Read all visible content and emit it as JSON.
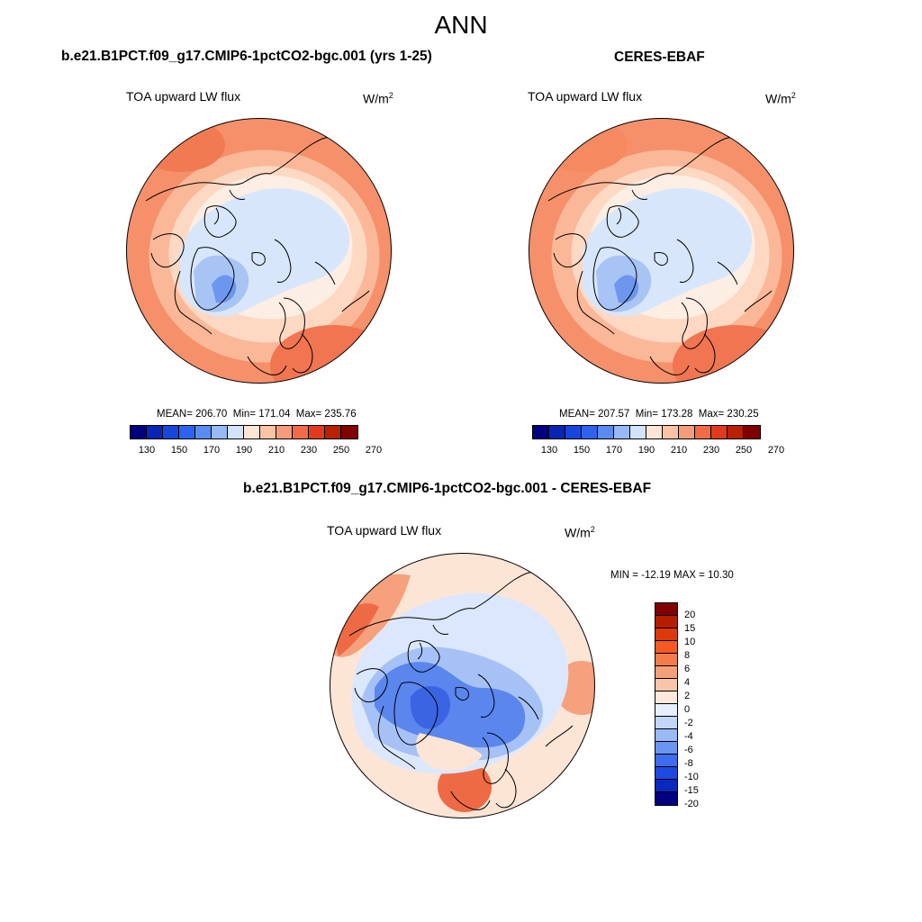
{
  "figure": {
    "title": "ANN"
  },
  "panels": {
    "model": {
      "title": "b.e21.B1PCT.f09_g17.CMIP6-1pctCO2-bgc.001 (yrs 1-25)",
      "variable": "TOA upward LW flux",
      "units_base": "W/m",
      "units_exp": "2",
      "mean_label": "MEAN=",
      "mean": "206.70",
      "min_label": "Min=",
      "min": "171.04",
      "max_label": "Max=",
      "max": "235.76"
    },
    "obs": {
      "title": "CERES-EBAF",
      "variable": "TOA upward LW flux",
      "units_base": "W/m",
      "units_exp": "2",
      "mean_label": "MEAN=",
      "mean": "207.57",
      "min_label": "Min=",
      "min": "173.28",
      "max_label": "Max=",
      "max": "230.25"
    },
    "diff": {
      "title": "b.e21.B1PCT.f09_g17.CMIP6-1pctCO2-bgc.001 - CERES-EBAF",
      "variable": "TOA upward LW flux",
      "units_base": "W/m",
      "units_exp": "2",
      "minmax_text": "MIN = -12.19 MAX =  10.30"
    }
  },
  "colorbars": {
    "abs": {
      "colors": [
        "#000080",
        "#0a24b4",
        "#1a45dc",
        "#2d63ec",
        "#5a8cf0",
        "#98b9f5",
        "#d2e3fb",
        "#fde5d6",
        "#fbc3a6",
        "#f79c7a",
        "#f26a48",
        "#e23a1e",
        "#b82200",
        "#800000"
      ],
      "ticks": [
        "130",
        "150",
        "170",
        "190",
        "210",
        "230",
        "250",
        "270"
      ]
    },
    "diff": {
      "colors": [
        "#800000",
        "#b41e00",
        "#dc3a0c",
        "#f55a22",
        "#f27c4a",
        "#f4a07a",
        "#f8c5a8",
        "#fde8db",
        "#e6efff",
        "#c2d6fa",
        "#9ab9f7",
        "#6c95f2",
        "#3f6cef",
        "#1e4ae2",
        "#0b28be",
        "#000080"
      ],
      "ticks": [
        "20",
        "15",
        "10",
        "8",
        "6",
        "4",
        "2",
        "0",
        "-2",
        "-4",
        "-6",
        "-8",
        "-10",
        "-15",
        "-20"
      ]
    }
  },
  "map_colors": {
    "abs_outer": "#f5906a",
    "abs_ring2": "#fbb898",
    "abs_ring3": "#fdd9c4",
    "abs_ring4": "#fdeee4",
    "abs_core": "#d8e6fb",
    "abs_blue": "#a8c4f5",
    "abs_blue2": "#6d96ee",
    "diff_base": "#fde5d6",
    "diff_warm": "#f6a07c",
    "diff_hot": "#ee6a44",
    "diff_light": "#dbe7fc",
    "diff_mid": "#a6c1f6",
    "diff_strong": "#5a86ee",
    "diff_deep": "#3a64e2"
  }
}
